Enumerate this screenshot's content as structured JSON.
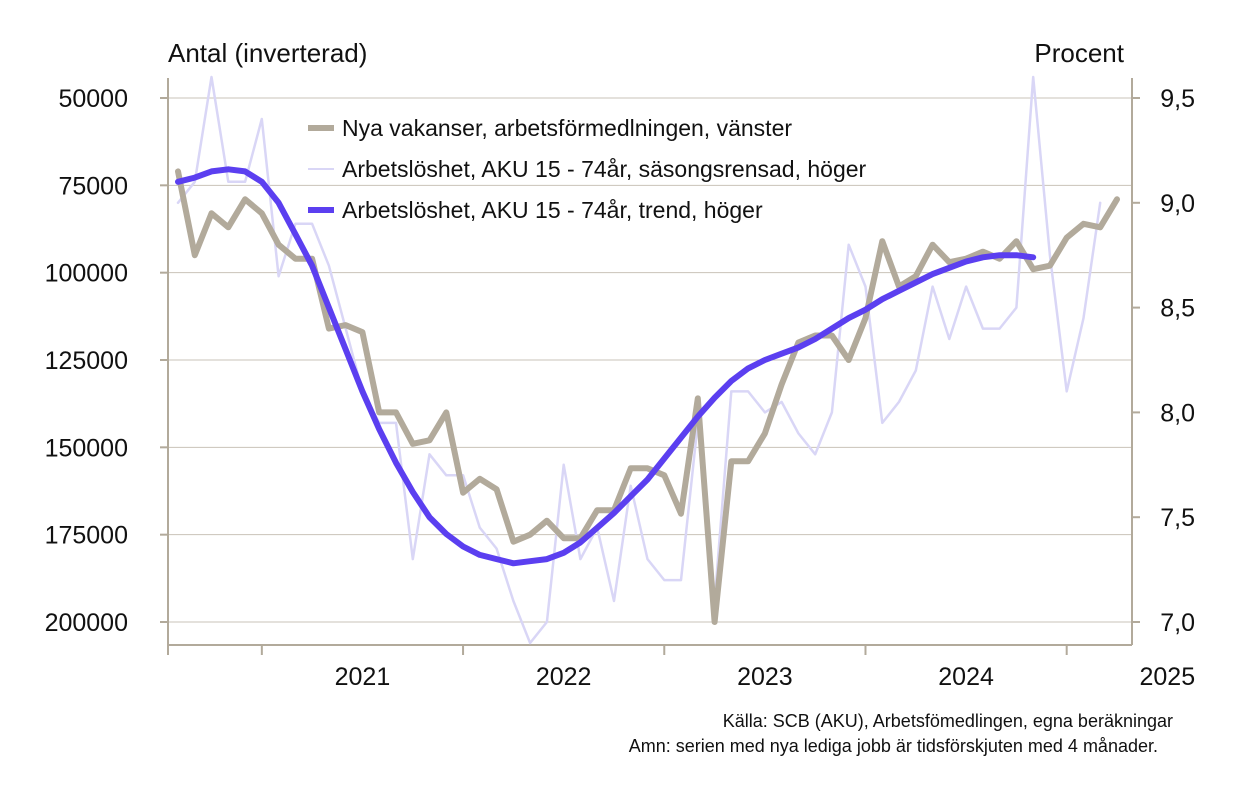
{
  "chart_data": {
    "type": "line",
    "left_axis_title": "Antal (inverterad)",
    "right_axis_title": "Procent",
    "left_axis": {
      "ticks": [
        50000,
        75000,
        100000,
        125000,
        150000,
        175000,
        200000
      ],
      "labels": [
        "50000",
        "75000",
        "100000",
        "125000",
        "150000",
        "175000",
        "200000"
      ],
      "inverted": true,
      "range": [
        50000,
        205000
      ]
    },
    "right_axis": {
      "ticks": [
        7.0,
        7.5,
        8.0,
        8.5,
        9.0,
        9.5
      ],
      "labels": [
        "7,0",
        "7,5",
        "8,0",
        "8,5",
        "9,0",
        "9,5"
      ],
      "range": [
        6.9,
        9.5
      ]
    },
    "x_axis": {
      "labels": [
        "2021",
        "2022",
        "2023",
        "2024",
        "2025"
      ],
      "range": [
        "2020-08",
        "2025-04"
      ]
    },
    "grid": true,
    "legend_position": "top-left",
    "source_note": "Källa: SCB (AKU), Arbetsfömedlingen, egna beräkningar",
    "footnote": "Amn: serien med nya lediga jobb är tidsförskjuten med 4 månader.",
    "x": [
      "2020-08",
      "2020-09",
      "2020-10",
      "2020-11",
      "2020-12",
      "2021-01",
      "2021-02",
      "2021-03",
      "2021-04",
      "2021-05",
      "2021-06",
      "2021-07",
      "2021-08",
      "2021-09",
      "2021-10",
      "2021-11",
      "2021-12",
      "2022-01",
      "2022-02",
      "2022-03",
      "2022-04",
      "2022-05",
      "2022-06",
      "2022-07",
      "2022-08",
      "2022-09",
      "2022-10",
      "2022-11",
      "2022-12",
      "2023-01",
      "2023-02",
      "2023-03",
      "2023-04",
      "2023-05",
      "2023-06",
      "2023-07",
      "2023-08",
      "2023-09",
      "2023-10",
      "2023-11",
      "2023-12",
      "2024-01",
      "2024-02",
      "2024-03",
      "2024-04",
      "2024-05",
      "2024-06",
      "2024-07",
      "2024-08",
      "2024-09",
      "2024-10",
      "2024-11",
      "2024-12",
      "2025-01",
      "2025-02",
      "2025-03",
      "2025-04"
    ],
    "series": [
      {
        "name": "Nya vakanser, arbetsförmedlningen, vänster",
        "axis": "left",
        "color": "#b2aa9b",
        "values": [
          71000,
          95000,
          83000,
          87000,
          79000,
          83000,
          92000,
          96000,
          96000,
          116000,
          115000,
          117000,
          140000,
          140000,
          149000,
          148000,
          140000,
          163000,
          159000,
          162000,
          177000,
          175000,
          171000,
          176000,
          176000,
          168000,
          168000,
          156000,
          156000,
          158000,
          169000,
          136000,
          200000,
          154000,
          154000,
          146000,
          132000,
          120000,
          118000,
          118000,
          125000,
          113000,
          91000,
          104000,
          101000,
          92000,
          97000,
          96000,
          94000,
          96000,
          91000,
          99000,
          98000,
          90000,
          86000,
          87000,
          79000
        ]
      },
      {
        "name": "Arbetslöshet, AKU 15 - 74år, säsongsrensad, höger",
        "axis": "right",
        "color": "#d9d6f6",
        "values": [
          9.0,
          9.1,
          9.6,
          9.1,
          9.1,
          9.4,
          8.65,
          8.9,
          8.9,
          8.7,
          8.4,
          8.1,
          7.95,
          7.95,
          7.3,
          7.8,
          7.7,
          7.7,
          7.45,
          7.35,
          7.1,
          6.9,
          7.0,
          7.75,
          7.3,
          7.45,
          7.1,
          7.65,
          7.3,
          7.2,
          7.2,
          7.95,
          7.1,
          8.1,
          8.1,
          8.0,
          8.05,
          7.9,
          7.8,
          8.0,
          8.8,
          8.6,
          7.95,
          8.05,
          8.2,
          8.6,
          8.35,
          8.6,
          8.4,
          8.4,
          8.5,
          9.6,
          8.75,
          8.1,
          8.45,
          9.0,
          null
        ],
        "thin": true
      },
      {
        "name": "Arbetslöshet, AKU 15 - 74år, trend, höger",
        "axis": "right",
        "color": "#5b3ff0",
        "values": [
          9.1,
          9.12,
          9.15,
          9.16,
          9.15,
          9.1,
          9.0,
          8.85,
          8.7,
          8.5,
          8.3,
          8.1,
          7.92,
          7.76,
          7.62,
          7.5,
          7.42,
          7.36,
          7.32,
          7.3,
          7.28,
          7.29,
          7.3,
          7.33,
          7.38,
          7.45,
          7.52,
          7.6,
          7.68,
          7.78,
          7.88,
          7.98,
          8.07,
          8.15,
          8.21,
          8.25,
          8.28,
          8.31,
          8.35,
          8.4,
          8.45,
          8.49,
          8.54,
          8.58,
          8.62,
          8.66,
          8.69,
          8.72,
          8.74,
          8.75,
          8.75,
          8.74,
          null,
          null,
          null,
          null,
          null
        ]
      }
    ]
  }
}
